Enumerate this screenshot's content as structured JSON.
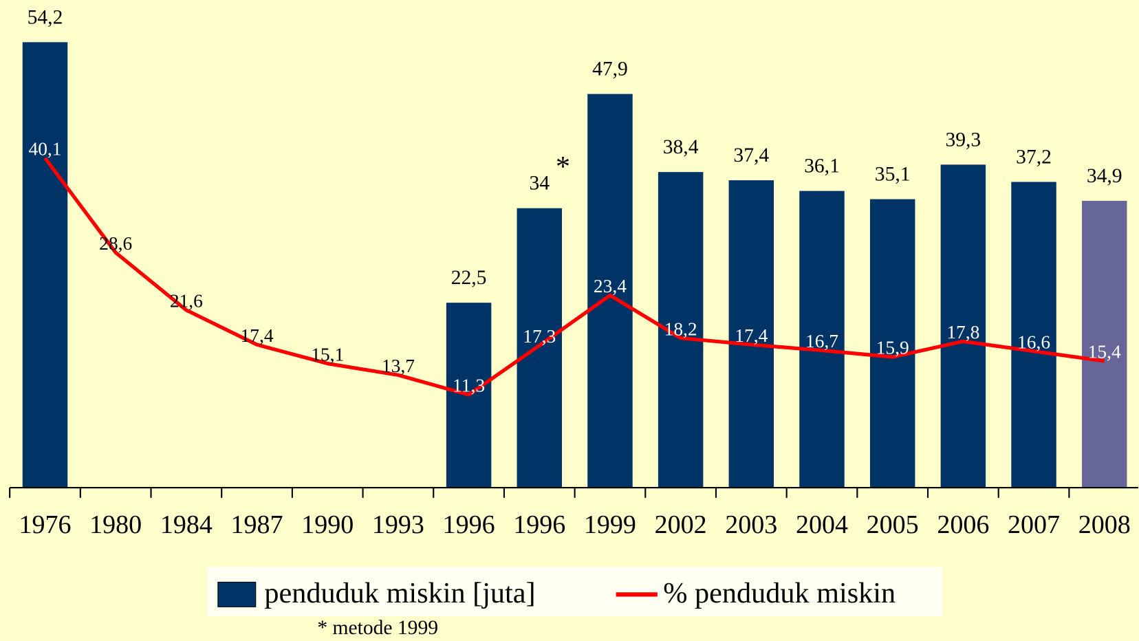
{
  "chart_data": {
    "type": "bar-line",
    "categories": [
      "1976",
      "1980",
      "1984",
      "1987",
      "1990",
      "1993",
      "1996",
      "1996",
      "1999",
      "2002",
      "2003",
      "2004",
      "2005",
      "2006",
      "2007",
      "2008"
    ],
    "ylim": [
      0,
      55
    ],
    "series": [
      {
        "name": "penduduk miskin [juta]",
        "type": "bar",
        "color": "#003366",
        "colors": [
          "#003366",
          "#003366",
          "#003366",
          "#003366",
          "#003366",
          "#003366",
          "#003366",
          "#003366",
          "#003366",
          "#003366",
          "#003366",
          "#003366",
          "#003366",
          "#003366",
          "#003366",
          "#666699"
        ],
        "values": [
          54.2,
          null,
          null,
          null,
          null,
          null,
          22.5,
          34,
          47.9,
          38.4,
          37.4,
          36.1,
          35.1,
          39.3,
          37.2,
          34.9
        ],
        "value_labels": [
          "54,2",
          null,
          null,
          null,
          null,
          null,
          "22,5",
          "34",
          "47,9",
          "38,4",
          "37,4",
          "36,1",
          "35,1",
          "39,3",
          "37,2",
          "34,9"
        ]
      },
      {
        "name": "% penduduk miskin",
        "type": "line",
        "color": "#ff0000",
        "values": [
          40.1,
          28.6,
          21.6,
          17.4,
          15.1,
          13.7,
          11.3,
          17.3,
          23.4,
          18.2,
          17.4,
          16.7,
          15.9,
          17.8,
          16.6,
          15.4
        ],
        "value_labels": [
          "40,1",
          "28,6",
          "21,6",
          "17,4",
          "15,1",
          "13,7",
          "11,3",
          "17,3",
          "23,4",
          "18,2",
          "17,4",
          "16,7",
          "15,9",
          "17,8",
          "16,6",
          "15,4"
        ]
      }
    ],
    "annotations": [
      "*",
      "* metode 1999"
    ]
  }
}
